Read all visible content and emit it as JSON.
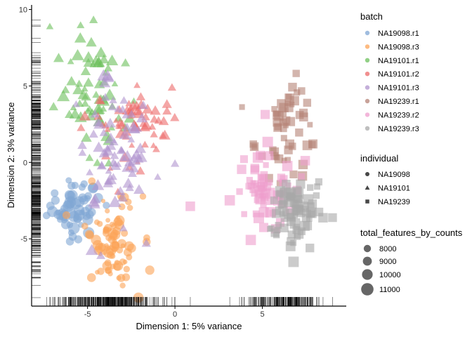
{
  "chart_data": {
    "type": "scatter",
    "title": "",
    "xlabel": "Dimension 1: 5% variance",
    "ylabel": "Dimension 2: 3% variance",
    "xlim": [
      -8.2,
      9.8
    ],
    "ylim": [
      -9.4,
      10.3
    ],
    "x_ticks": [
      -5,
      0,
      5
    ],
    "y_ticks": [
      -5,
      0,
      5,
      10
    ],
    "x_tick_labels": [
      "-5",
      "0",
      "5"
    ],
    "y_tick_labels": [
      "-5",
      "0",
      "5",
      "10"
    ],
    "grid": false,
    "rug": true,
    "legend_position": "right",
    "legends": {
      "batch": {
        "title": "batch",
        "entries": [
          {
            "label": "NA19098.r1",
            "color": "#80a7d4"
          },
          {
            "label": "NA19098.r3",
            "color": "#fca457"
          },
          {
            "label": "NA19101.r1",
            "color": "#6cc05c"
          },
          {
            "label": "NA19101.r2",
            "color": "#ec6a6a"
          },
          {
            "label": "NA19101.r3",
            "color": "#b094ce"
          },
          {
            "label": "NA19239.r1",
            "color": "#b68377"
          },
          {
            "label": "NA19239.r2",
            "color": "#ef9ecd"
          },
          {
            "label": "NA19239.r3",
            "color": "#a9a9a9"
          }
        ]
      },
      "individual": {
        "title": "individual",
        "entries": [
          {
            "label": "NA19098",
            "shape": "circle"
          },
          {
            "label": "NA19101",
            "shape": "triangle"
          },
          {
            "label": "NA19239",
            "shape": "square"
          }
        ]
      },
      "size": {
        "title": "total_features_by_counts",
        "entries": [
          {
            "label": "8000",
            "value": 8000
          },
          {
            "label": "9000",
            "value": 9000
          },
          {
            "label": "10000",
            "value": 10000
          },
          {
            "label": "11000",
            "value": 11000
          }
        ]
      }
    },
    "series": [
      {
        "name": "NA19098.r1",
        "individual": "NA19098",
        "n": 60,
        "center": [
          -5.8,
          -3.0
        ],
        "spread": [
          0.75,
          0.9
        ],
        "size_range": [
          7500,
          11200
        ]
      },
      {
        "name": "NA19098.r3",
        "individual": "NA19098",
        "n": 85,
        "center": [
          -3.6,
          -5.3
        ],
        "spread": [
          0.75,
          1.6
        ],
        "size_range": [
          6500,
          10500
        ]
      },
      {
        "name": "NA19101.r1",
        "individual": "NA19101",
        "n": 70,
        "center": [
          -4.6,
          4.8
        ],
        "spread": [
          1.0,
          2.0
        ],
        "size_range": [
          7500,
          11000
        ]
      },
      {
        "name": "NA19101.r2",
        "individual": "NA19101",
        "n": 60,
        "center": [
          -2.8,
          2.3
        ],
        "spread": [
          1.2,
          1.6
        ],
        "size_range": [
          7000,
          10500
        ]
      },
      {
        "name": "NA19101.r3",
        "individual": "NA19101",
        "n": 80,
        "center": [
          -3.6,
          0.8
        ],
        "spread": [
          1.1,
          2.3
        ],
        "size_range": [
          7500,
          11000
        ]
      },
      {
        "name": "NA19239.r1",
        "individual": "NA19239",
        "n": 55,
        "center": [
          6.4,
          2.0
        ],
        "spread": [
          0.9,
          1.6
        ],
        "size_range": [
          7500,
          10500
        ]
      },
      {
        "name": "NA19239.r2",
        "individual": "NA19239",
        "n": 65,
        "center": [
          4.9,
          -1.6
        ],
        "spread": [
          1.0,
          1.5
        ],
        "size_range": [
          7500,
          11000
        ]
      },
      {
        "name": "NA19239.r3",
        "individual": "NA19239",
        "n": 80,
        "center": [
          6.8,
          -3.3
        ],
        "spread": [
          0.8,
          1.1
        ],
        "size_range": [
          7500,
          11000
        ]
      }
    ]
  }
}
